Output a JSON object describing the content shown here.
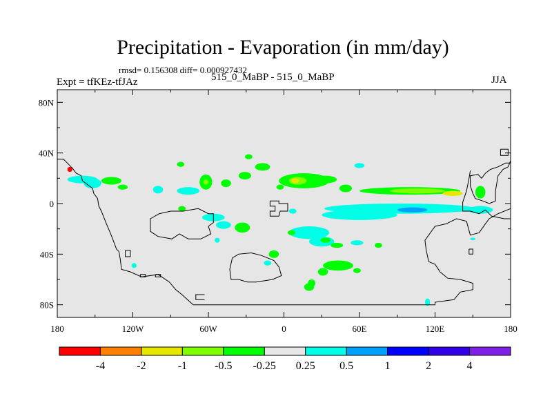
{
  "chart_data": {
    "type": "heatmap",
    "title": "Precipitation - Evaporation (in mm/day)",
    "stats_text": "rmsd= 0.156308 diff= 0.000927432",
    "left_label": "Expt = tfKEz-tfJAz",
    "center_label": "515_0_MaBP - 515_0_MaBP",
    "right_label": "JJA",
    "x_tick_labels": [
      "180",
      "120W",
      "60W",
      "0",
      "60E",
      "120E",
      "180"
    ],
    "y_tick_labels": [
      "80N",
      "40N",
      "0",
      "40S",
      "80S"
    ],
    "x_ticks": [
      -180,
      -120,
      -60,
      0,
      60,
      120,
      180
    ],
    "y_ticks": [
      80,
      40,
      0,
      -40,
      -80
    ],
    "xlim": [
      -180,
      180
    ],
    "ylim": [
      -90,
      90
    ],
    "colorbar": {
      "levels": [
        "-4",
        "-2",
        "-1",
        "-0.5",
        "-0.25",
        "0.25",
        "0.5",
        "1",
        "2",
        "4"
      ],
      "colors": [
        "#ff0000",
        "#ff8000",
        "#e6e600",
        "#80ff00",
        "#00ff00",
        "#e6e6e6",
        "#00ffe6",
        "#00a0ff",
        "#0000ff",
        "#3000e6",
        "#8020e6"
      ]
    },
    "field_background": "#e6e6e6"
  }
}
